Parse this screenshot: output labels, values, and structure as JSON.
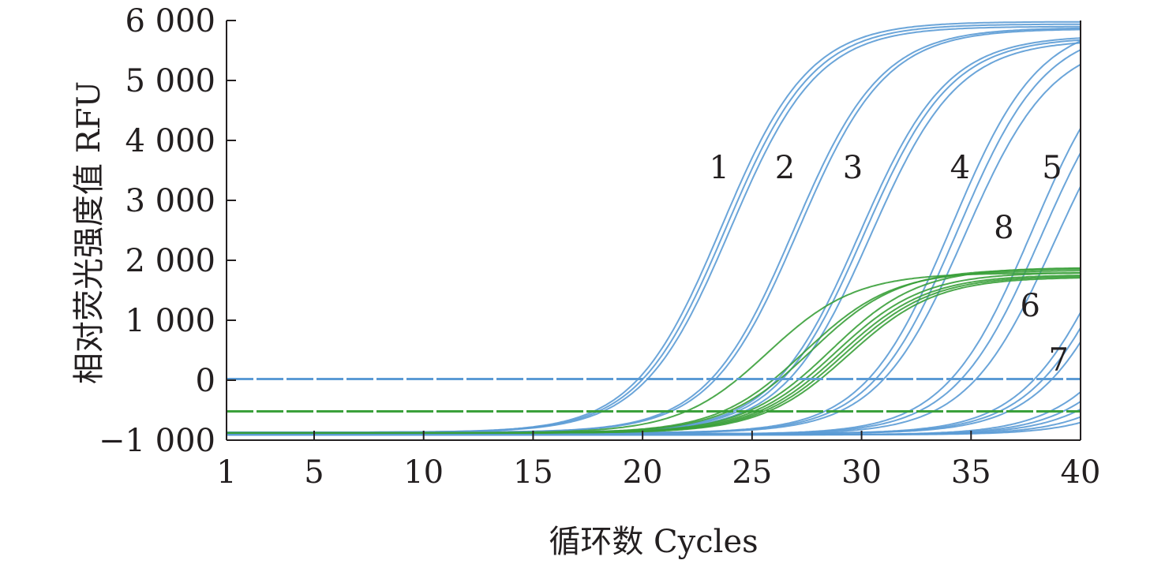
{
  "chart_data": {
    "type": "line",
    "title": "",
    "xlabel": "循环数 Cycles",
    "ylabel": "相对荧光强度值 RFU",
    "xlim": [
      1,
      40
    ],
    "ylim": [
      -1000,
      6000
    ],
    "x_ticks": [
      {
        "value": 1,
        "label": "1"
      },
      {
        "value": 5,
        "label": "5"
      },
      {
        "value": 10,
        "label": "10"
      },
      {
        "value": 15,
        "label": "15"
      },
      {
        "value": 20,
        "label": "20"
      },
      {
        "value": 25,
        "label": "25"
      },
      {
        "value": 30,
        "label": "30"
      },
      {
        "value": 35,
        "label": "35"
      },
      {
        "value": 40,
        "label": "40"
      }
    ],
    "y_ticks": [
      {
        "value": -1000,
        "label": "−1 000"
      },
      {
        "value": 0,
        "label": "0"
      },
      {
        "value": 1000,
        "label": "1 000"
      },
      {
        "value": 2000,
        "label": "2 000"
      },
      {
        "value": 3000,
        "label": "3 000"
      },
      {
        "value": 4000,
        "label": "4 000"
      },
      {
        "value": 5000,
        "label": "5 000"
      },
      {
        "value": 6000,
        "label": "6 000"
      }
    ],
    "grid": false,
    "legend": "none",
    "colors": {
      "blue": "#5b9bd5",
      "green": "#3aa03a",
      "axis": "#231f20"
    },
    "thresholds": [
      {
        "color": "blue",
        "y": 20
      },
      {
        "color": "green",
        "y": -520
      }
    ],
    "curve_labels": [
      {
        "text": "1",
        "x": 23.5,
        "y": 3550
      },
      {
        "text": "2",
        "x": 26.5,
        "y": 3550
      },
      {
        "text": "3",
        "x": 29.6,
        "y": 3550
      },
      {
        "text": "4",
        "x": 34.5,
        "y": 3550
      },
      {
        "text": "5",
        "x": 38.7,
        "y": 3550
      },
      {
        "text": "8",
        "x": 36.5,
        "y": 2550
      },
      {
        "text": "6",
        "x": 37.7,
        "y": 1250
      },
      {
        "text": "7",
        "x": 39.0,
        "y": 350
      }
    ],
    "series": [
      {
        "color": "blue",
        "baseline": -870,
        "plateau": 5980,
        "midpoint": 23.6,
        "slope": 0.5
      },
      {
        "color": "blue",
        "baseline": -870,
        "plateau": 5940,
        "midpoint": 23.8,
        "slope": 0.5
      },
      {
        "color": "blue",
        "baseline": -870,
        "plateau": 5900,
        "midpoint": 24.0,
        "slope": 0.5
      },
      {
        "color": "blue",
        "baseline": -870,
        "plateau": 5880,
        "midpoint": 26.9,
        "slope": 0.5
      },
      {
        "color": "blue",
        "baseline": -870,
        "plateau": 5860,
        "midpoint": 27.1,
        "slope": 0.5
      },
      {
        "color": "blue",
        "baseline": -870,
        "plateau": 5750,
        "midpoint": 29.9,
        "slope": 0.5
      },
      {
        "color": "blue",
        "baseline": -870,
        "plateau": 5720,
        "midpoint": 30.1,
        "slope": 0.5
      },
      {
        "color": "blue",
        "baseline": -870,
        "plateau": 5680,
        "midpoint": 30.4,
        "slope": 0.5
      },
      {
        "color": "blue",
        "baseline": -880,
        "plateau": 6000,
        "midpoint": 34.1,
        "slope": 0.5
      },
      {
        "color": "blue",
        "baseline": -880,
        "plateau": 5900,
        "midpoint": 34.4,
        "slope": 0.5
      },
      {
        "color": "blue",
        "baseline": -880,
        "plateau": 5700,
        "midpoint": 34.7,
        "slope": 0.5
      },
      {
        "color": "blue",
        "baseline": -900,
        "plateau": 5900,
        "midpoint": 37.8,
        "slope": 0.5
      },
      {
        "color": "blue",
        "baseline": -900,
        "plateau": 5700,
        "midpoint": 38.2,
        "slope": 0.5
      },
      {
        "color": "blue",
        "baseline": -900,
        "plateau": 5500,
        "midpoint": 38.8,
        "slope": 0.5
      },
      {
        "color": "blue",
        "baseline": -890,
        "plateau": 5000,
        "midpoint": 41.3,
        "slope": 0.5
      },
      {
        "color": "blue",
        "baseline": -890,
        "plateau": 5000,
        "midpoint": 41.7,
        "slope": 0.5
      },
      {
        "color": "blue",
        "baseline": -890,
        "plateau": 5000,
        "midpoint": 42.1,
        "slope": 0.5
      },
      {
        "color": "blue",
        "baseline": -910,
        "plateau": 3000,
        "midpoint": 43.0,
        "slope": 0.5
      },
      {
        "color": "blue",
        "baseline": -910,
        "plateau": 3000,
        "midpoint": 43.6,
        "slope": 0.5
      },
      {
        "color": "blue",
        "baseline": -910,
        "plateau": 3000,
        "midpoint": 44.2,
        "slope": 0.5
      },
      {
        "color": "blue",
        "baseline": -910,
        "plateau": 3000,
        "midpoint": 45.0,
        "slope": 0.5
      },
      {
        "color": "blue",
        "baseline": -910,
        "plateau": 3000,
        "midpoint": 45.8,
        "slope": 0.5
      },
      {
        "color": "green",
        "baseline": -880,
        "plateau": 1790,
        "midpoint": 25.7,
        "slope": 0.5
      },
      {
        "color": "green",
        "baseline": -880,
        "plateau": 1830,
        "midpoint": 27.4,
        "slope": 0.5
      },
      {
        "color": "green",
        "baseline": -880,
        "plateau": 1860,
        "midpoint": 27.7,
        "slope": 0.5
      },
      {
        "color": "green",
        "baseline": -880,
        "plateau": 1880,
        "midpoint": 28.6,
        "slope": 0.5
      },
      {
        "color": "green",
        "baseline": -880,
        "plateau": 1800,
        "midpoint": 28.8,
        "slope": 0.5
      },
      {
        "color": "green",
        "baseline": -880,
        "plateau": 1760,
        "midpoint": 29.0,
        "slope": 0.5
      },
      {
        "color": "green",
        "baseline": -880,
        "plateau": 1740,
        "midpoint": 29.2,
        "slope": 0.5
      },
      {
        "color": "green",
        "baseline": -880,
        "plateau": 1720,
        "midpoint": 29.4,
        "slope": 0.5
      }
    ]
  }
}
